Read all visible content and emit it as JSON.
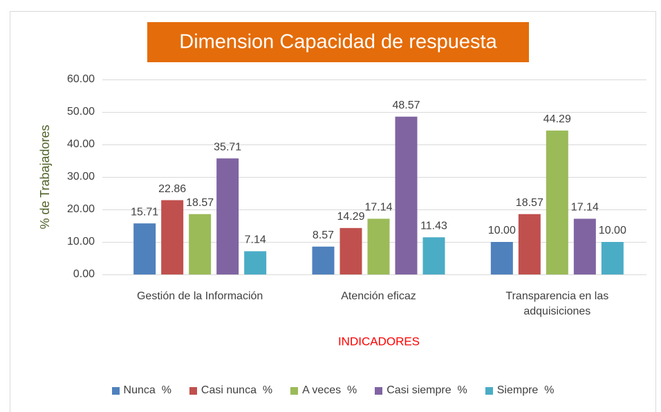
{
  "chart_data": {
    "type": "bar",
    "title": "Dimension Capacidad de respuesta",
    "ylabel": "% de Trabajadores",
    "xlabel": "INDICADORES",
    "categories": [
      "Gestión de la Información",
      "Atención eficaz",
      "Transparencia en las adquisiciones"
    ],
    "series": [
      {
        "name": "Nunca  %",
        "color": "#4F81BD",
        "values": [
          15.71,
          8.57,
          10
        ],
        "value_labels": [
          "15.71",
          "8.57",
          "10.00"
        ]
      },
      {
        "name": "Casi nunca  %",
        "color": "#C0504D",
        "values": [
          22.86,
          14.29,
          18.57
        ],
        "value_labels": [
          "22.86",
          "14.29",
          "18.57"
        ]
      },
      {
        "name": "A veces  %",
        "color": "#9BBB59",
        "values": [
          18.57,
          17.14,
          44.29
        ],
        "value_labels": [
          "18.57",
          "17.14",
          "44.29"
        ]
      },
      {
        "name": "Casi siempre  %",
        "color": "#8064A2",
        "values": [
          35.71,
          48.57,
          17.14
        ],
        "value_labels": [
          "35.71",
          "48.57",
          "17.14"
        ]
      },
      {
        "name": "Siempre  %",
        "color": "#4BACC6",
        "values": [
          7.14,
          11.43,
          10
        ],
        "value_labels": [
          "7.14",
          "11.43",
          "10.00"
        ]
      }
    ],
    "ylim": [
      0,
      60
    ],
    "yticks": [
      {
        "value": 0,
        "label": "0.00"
      },
      {
        "value": 10,
        "label": "10.00"
      },
      {
        "value": 20,
        "label": "20.00"
      },
      {
        "value": 30,
        "label": "30.00"
      },
      {
        "value": 40,
        "label": "40.00"
      },
      {
        "value": 50,
        "label": "50.00"
      },
      {
        "value": 60,
        "label": "60.00"
      }
    ],
    "grid": true,
    "legend": "bottom"
  }
}
